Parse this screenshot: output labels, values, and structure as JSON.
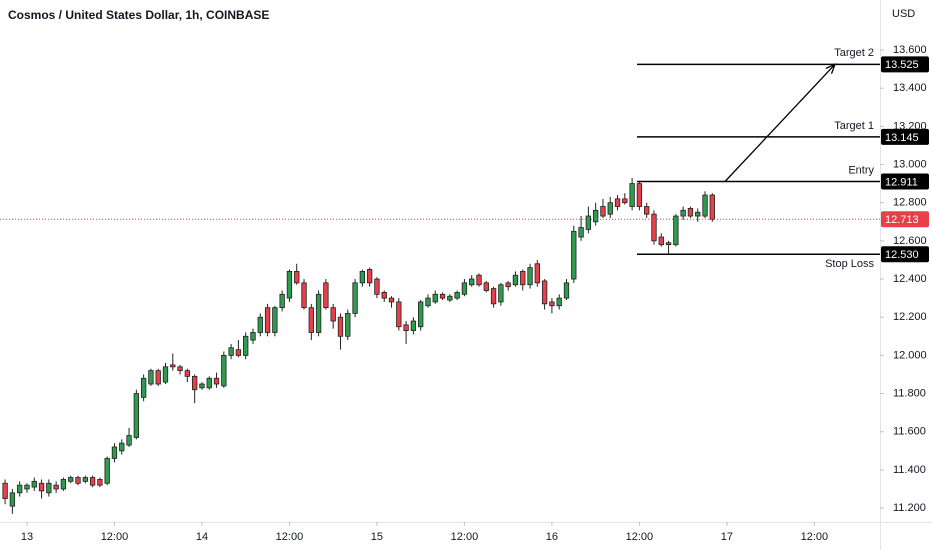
{
  "chart_data": {
    "type": "candlestick",
    "title": "Cosmos / United States Dollar, 1h, COINBASE",
    "y_axis_label": "USD",
    "up_color": "#2e9b4e",
    "down_color": "#e8404a",
    "x": [
      -3,
      -2,
      -1,
      0,
      1,
      2,
      3,
      4,
      5,
      6,
      7,
      8,
      9,
      10,
      11,
      12,
      13,
      14,
      15,
      16,
      17,
      18,
      19,
      20,
      21,
      22,
      23,
      24,
      25,
      26,
      27,
      28,
      29,
      30,
      31,
      32,
      33,
      34,
      35,
      36,
      37,
      38,
      39,
      40,
      41,
      42,
      43,
      44,
      45,
      46,
      47,
      48,
      49,
      50,
      51,
      52,
      53,
      54,
      55,
      56,
      57,
      58,
      59,
      60,
      61,
      62,
      63,
      64,
      65,
      66,
      67,
      68,
      69,
      70,
      71,
      72,
      73,
      74,
      75,
      76,
      77,
      78,
      79,
      80,
      81,
      82,
      83,
      84,
      85,
      86,
      87,
      88,
      89,
      90,
      91,
      92,
      93,
      94
    ],
    "open": [
      11.33,
      11.21,
      11.28,
      11.3,
      11.31,
      11.33,
      11.28,
      11.32,
      11.3,
      11.34,
      11.36,
      11.34,
      11.36,
      11.35,
      11.33,
      11.46,
      11.5,
      11.53,
      11.57,
      11.78,
      11.85,
      11.92,
      11.86,
      11.95,
      11.94,
      11.92,
      11.89,
      11.83,
      11.83,
      11.88,
      11.84,
      12.0,
      12.03,
      12.0,
      12.08,
      12.12,
      12.25,
      12.12,
      12.25,
      12.3,
      12.44,
      12.38,
      12.25,
      12.12,
      12.38,
      12.25,
      12.2,
      12.1,
      12.22,
      12.38,
      12.45,
      12.4,
      12.33,
      12.3,
      12.28,
      12.16,
      12.13,
      12.15,
      12.26,
      12.28,
      12.32,
      12.29,
      12.3,
      12.32,
      12.37,
      12.42,
      12.38,
      12.35,
      12.28,
      12.38,
      12.37,
      12.44,
      12.37,
      12.48,
      12.39,
      12.28,
      12.26,
      12.3,
      12.4,
      12.62,
      12.66,
      12.7,
      12.78,
      12.74,
      12.82,
      12.82,
      12.78,
      12.9,
      12.78,
      12.74,
      12.62,
      12.59,
      12.58,
      12.73,
      12.77,
      12.73,
      12.73,
      12.84
    ],
    "high": [
      11.35,
      11.3,
      11.34,
      11.33,
      11.36,
      11.35,
      11.35,
      11.34,
      11.36,
      11.37,
      11.37,
      11.37,
      11.37,
      11.36,
      11.47,
      11.54,
      11.56,
      11.62,
      11.82,
      11.9,
      11.93,
      11.93,
      11.96,
      12.01,
      11.95,
      11.93,
      11.9,
      11.86,
      11.89,
      11.91,
      12.02,
      12.06,
      12.08,
      12.12,
      12.14,
      12.22,
      12.27,
      12.26,
      12.34,
      12.45,
      12.48,
      12.4,
      12.27,
      12.34,
      12.4,
      12.27,
      12.22,
      12.24,
      12.4,
      12.45,
      12.46,
      12.41,
      12.34,
      12.31,
      12.3,
      12.18,
      12.2,
      12.29,
      12.32,
      12.34,
      12.33,
      12.32,
      12.34,
      12.4,
      12.42,
      12.43,
      12.39,
      12.36,
      12.38,
      12.39,
      12.44,
      12.45,
      12.48,
      12.5,
      12.4,
      12.3,
      12.32,
      12.4,
      12.68,
      12.73,
      12.78,
      12.8,
      12.82,
      12.83,
      12.84,
      12.85,
      12.93,
      12.91,
      12.8,
      12.76,
      12.64,
      12.6,
      12.74,
      12.78,
      12.78,
      12.77,
      12.86,
      12.85
    ],
    "low": [
      11.22,
      11.17,
      11.26,
      11.28,
      11.29,
      11.25,
      11.26,
      11.28,
      11.29,
      11.33,
      11.32,
      11.33,
      11.31,
      11.31,
      11.32,
      11.44,
      11.48,
      11.52,
      11.56,
      11.76,
      11.84,
      11.84,
      11.85,
      11.92,
      11.9,
      11.86,
      11.75,
      11.82,
      11.82,
      11.83,
      11.83,
      11.98,
      11.99,
      11.98,
      12.06,
      12.1,
      12.1,
      12.1,
      12.23,
      12.28,
      12.37,
      12.24,
      12.08,
      12.1,
      12.24,
      12.14,
      12.03,
      12.08,
      12.2,
      12.36,
      12.36,
      12.3,
      12.28,
      12.25,
      12.13,
      12.06,
      12.11,
      12.13,
      12.25,
      12.27,
      12.29,
      12.28,
      12.29,
      12.31,
      12.36,
      12.36,
      12.33,
      12.25,
      12.26,
      12.34,
      12.36,
      12.34,
      12.35,
      12.36,
      12.24,
      12.22,
      12.24,
      12.29,
      12.38,
      12.6,
      12.64,
      12.68,
      12.72,
      12.72,
      12.76,
      12.79,
      12.76,
      12.76,
      12.72,
      12.58,
      12.57,
      12.53,
      12.57,
      12.71,
      12.72,
      12.7,
      12.72,
      12.7
    ],
    "close": [
      11.25,
      11.28,
      11.32,
      11.32,
      11.34,
      11.29,
      11.33,
      11.3,
      11.35,
      11.36,
      11.33,
      11.36,
      11.32,
      11.32,
      11.46,
      11.52,
      11.54,
      11.58,
      11.8,
      11.88,
      11.92,
      11.85,
      11.94,
      11.94,
      11.92,
      11.89,
      11.82,
      11.85,
      11.88,
      11.85,
      12.0,
      12.04,
      12.0,
      12.1,
      12.12,
      12.2,
      12.12,
      12.25,
      12.32,
      12.44,
      12.38,
      12.25,
      12.12,
      12.32,
      12.25,
      12.18,
      12.1,
      12.22,
      12.38,
      12.44,
      12.38,
      12.32,
      12.3,
      12.28,
      12.15,
      12.13,
      12.18,
      12.28,
      12.3,
      12.32,
      12.3,
      12.31,
      12.33,
      12.38,
      12.4,
      12.37,
      12.34,
      12.27,
      12.37,
      12.36,
      12.42,
      12.37,
      12.46,
      12.38,
      12.27,
      12.26,
      12.3,
      12.38,
      12.65,
      12.67,
      12.73,
      12.76,
      12.73,
      12.8,
      12.78,
      12.8,
      12.9,
      12.78,
      12.74,
      12.6,
      12.58,
      12.58,
      12.73,
      12.76,
      12.73,
      12.75,
      12.84,
      12.713
    ],
    "xlim": [
      -3.7,
      117
    ],
    "xticks": [
      {
        "value": 0,
        "label": "13"
      },
      {
        "value": 12,
        "label": "12:00"
      },
      {
        "value": 24,
        "label": "14"
      },
      {
        "value": 36,
        "label": "12:00"
      },
      {
        "value": 48,
        "label": "15"
      },
      {
        "value": 60,
        "label": "12:00"
      },
      {
        "value": 72,
        "label": "16"
      },
      {
        "value": 84,
        "label": "12:00"
      },
      {
        "value": 96,
        "label": "17"
      },
      {
        "value": 108,
        "label": "12:00"
      }
    ],
    "ylim": [
      11.127,
      13.862
    ],
    "yticks": [
      {
        "value": 11.2,
        "label": "11.200"
      },
      {
        "value": 11.4,
        "label": "11.400"
      },
      {
        "value": 11.6,
        "label": "11.600"
      },
      {
        "value": 11.8,
        "label": "11.800"
      },
      {
        "value": 12.0,
        "label": "12.000"
      },
      {
        "value": 12.2,
        "label": "12.200"
      },
      {
        "value": 12.4,
        "label": "12.400"
      },
      {
        "value": 12.6,
        "label": "12.600"
      },
      {
        "value": 12.8,
        "label": "12.800"
      },
      {
        "value": 13.0,
        "label": "13.000"
      },
      {
        "value": 13.2,
        "label": "13.200"
      },
      {
        "value": 13.4,
        "label": "13.400"
      },
      {
        "value": 13.6,
        "label": "13.600"
      }
    ],
    "last_price": {
      "value": 12.713,
      "label": "12.713"
    },
    "levels": [
      {
        "name": "Target 2",
        "value": 13.525,
        "label": "13.525"
      },
      {
        "name": "Target 1",
        "value": 13.145,
        "label": "13.145"
      },
      {
        "name": "Entry",
        "value": 12.911,
        "label": "12.911"
      },
      {
        "name": "Stop Loss",
        "value": 12.53,
        "label": "12.530"
      }
    ]
  }
}
